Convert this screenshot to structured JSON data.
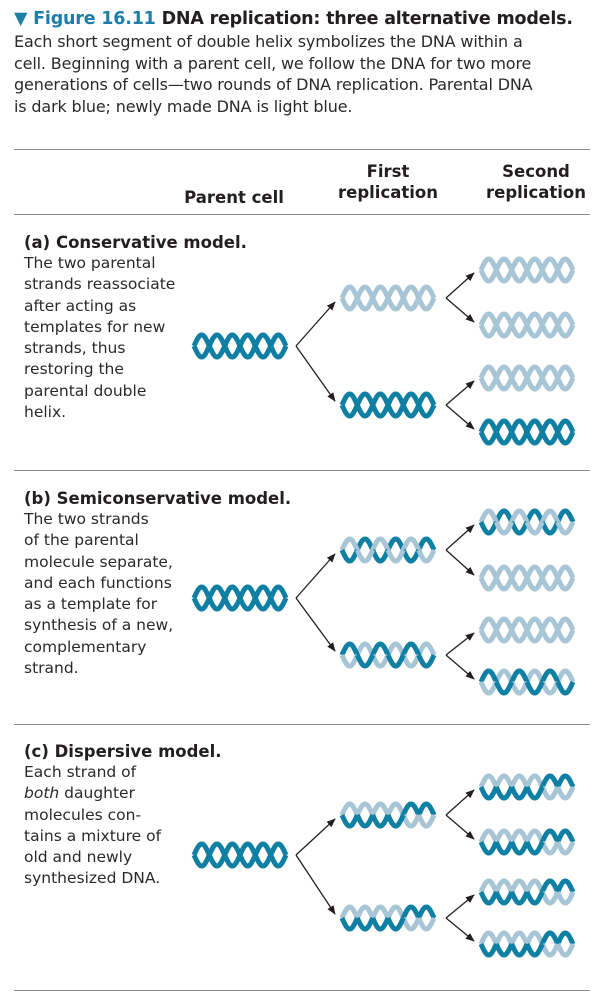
{
  "figure": {
    "arrow": "▼",
    "number": "Figure 16.11",
    "title": "DNA replication: three alternative models.",
    "body": [
      "Each short segment of double helix symbolizes the DNA within a",
      "cell. Beginning with a parent cell, we follow the DNA for two more",
      "generations of cells—two rounds of DNA replication. Parental DNA",
      "is dark blue; newly made DNA is light blue."
    ]
  },
  "colors": {
    "parental": "#0f7fa3",
    "new": "#a7c5d5",
    "accent": "#1d7fa8"
  },
  "columns": {
    "parent": "Parent cell",
    "first": [
      "First",
      "replication"
    ],
    "second": [
      "Second",
      "replication"
    ]
  },
  "models": [
    {
      "title": "(a) Conservative model.",
      "desc": [
        "The two parental",
        "strands reassociate",
        "after acting as",
        "templates for new",
        "strands, thus",
        "restoring the",
        "parental double",
        "helix."
      ],
      "first": [
        "new-new",
        "old-old"
      ],
      "second": [
        "new-new",
        "new-new",
        "new-new",
        "old-old"
      ]
    },
    {
      "title": "(b) Semiconservative model.",
      "desc": [
        "The two strands",
        "of the parental",
        "molecule separate,",
        "and each functions",
        "as a template for",
        "synthesis of a new,",
        "complementary",
        "strand."
      ],
      "first": [
        "old-new",
        "new-old"
      ],
      "second": [
        "old-new",
        "new-new",
        "new-new",
        "new-old"
      ]
    },
    {
      "title": "(c) Dispersive model.",
      "desc": [
        "Each strand of",
        "both daughter",
        "molecules con-",
        "tains a mixture of",
        "old and newly",
        "synthesized DNA."
      ],
      "first": [
        "mixed",
        "mixed"
      ],
      "second": [
        "mixed",
        "mixed",
        "mixed",
        "mixed"
      ]
    }
  ]
}
